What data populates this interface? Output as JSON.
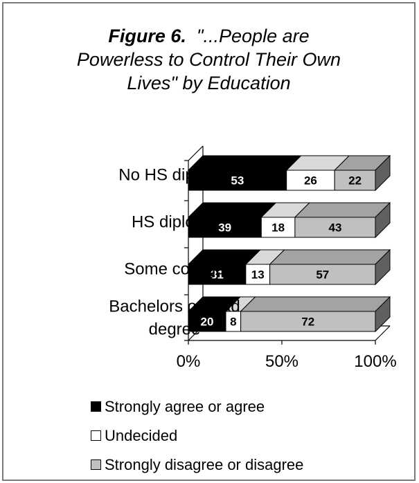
{
  "title": {
    "figure_label": "Figure 6.",
    "line1_rest": "\"...People are",
    "line2": "Powerless to Control Their Own",
    "line3": "Lives\" by Education"
  },
  "chart_data": {
    "type": "bar",
    "orientation": "horizontal",
    "stacked": "percent",
    "style": "3d",
    "categories": [
      "No HS diploma",
      "HS diploma",
      "Some college",
      "Bachelors or grad degree"
    ],
    "category_lines": [
      [
        "No HS diploma"
      ],
      [
        "HS diploma"
      ],
      [
        "Some college"
      ],
      [
        "Bachelors or grad",
        "degree"
      ]
    ],
    "series": [
      {
        "name": "Strongly agree or agree",
        "values": [
          53,
          39,
          31,
          20
        ],
        "color": "#000000",
        "label_color": "#ffffff"
      },
      {
        "name": "Undecided",
        "values": [
          26,
          18,
          13,
          8
        ],
        "color": "#ffffff",
        "label_color": "#000000"
      },
      {
        "name": "Strongly disagree or disagree",
        "values": [
          22,
          43,
          57,
          72
        ],
        "color": "#c0c0c0",
        "label_color": "#000000"
      }
    ],
    "x_ticks": [
      "0%",
      "50%",
      "100%"
    ],
    "xlim": [
      0,
      100
    ],
    "grid": false,
    "legend_position": "bottom"
  }
}
